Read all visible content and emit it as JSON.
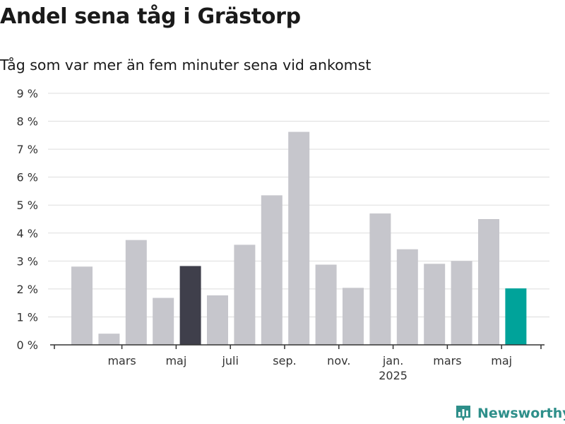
{
  "title": "Andel sena tåg i Grästorp",
  "subtitle": "Tåg som var mer än fem minuter sena vid ankomst",
  "chart_data": {
    "type": "bar",
    "title": "Andel sena tåg i Grästorp",
    "subtitle": "Tåg som var mer än fem minuter sena vid ankomst",
    "unit": "%",
    "ylim": [
      0,
      9
    ],
    "y_ticks": [
      0,
      1,
      2,
      3,
      4,
      5,
      6,
      7,
      8,
      9
    ],
    "y_tick_labels": [
      "0 %",
      "1 %",
      "2 %",
      "3 %",
      "4 %",
      "5 %",
      "6 %",
      "7 %",
      "8 %",
      "9 %"
    ],
    "grid": true,
    "legend": "none",
    "x_tick_labels": [
      {
        "after_bar": 1,
        "label": "mars"
      },
      {
        "after_bar": 3,
        "label": "maj"
      },
      {
        "after_bar": 5,
        "label": "juli"
      },
      {
        "after_bar": 7,
        "label": "sep."
      },
      {
        "after_bar": 9,
        "label": "nov."
      },
      {
        "after_bar": 11,
        "label": "jan.",
        "label2": "2025"
      },
      {
        "after_bar": 13,
        "label": "mars"
      },
      {
        "after_bar": 15,
        "label": "maj"
      }
    ],
    "values": [
      2.8,
      0.4,
      3.75,
      1.68,
      2.82,
      1.77,
      3.58,
      5.35,
      7.62,
      2.87,
      2.04,
      4.7,
      3.42,
      2.9,
      3.0,
      4.5,
      2.02
    ],
    "highlight": [
      {
        "index": 4,
        "color": "#3f3f4b"
      },
      {
        "index": 16,
        "color": "#00a39a"
      }
    ],
    "bar_color": "#c6c6cc"
  },
  "colors": {
    "bar": "#c6c6cc",
    "highlight_dark": "#3f3f4b",
    "highlight_teal": "#00a39a",
    "grid": "#dddddd",
    "axis": "#333333",
    "brand": "#2e8f8a"
  },
  "logo": {
    "text": "Newsworthy",
    "icon": "newsworthy-bar-chart-icon"
  }
}
